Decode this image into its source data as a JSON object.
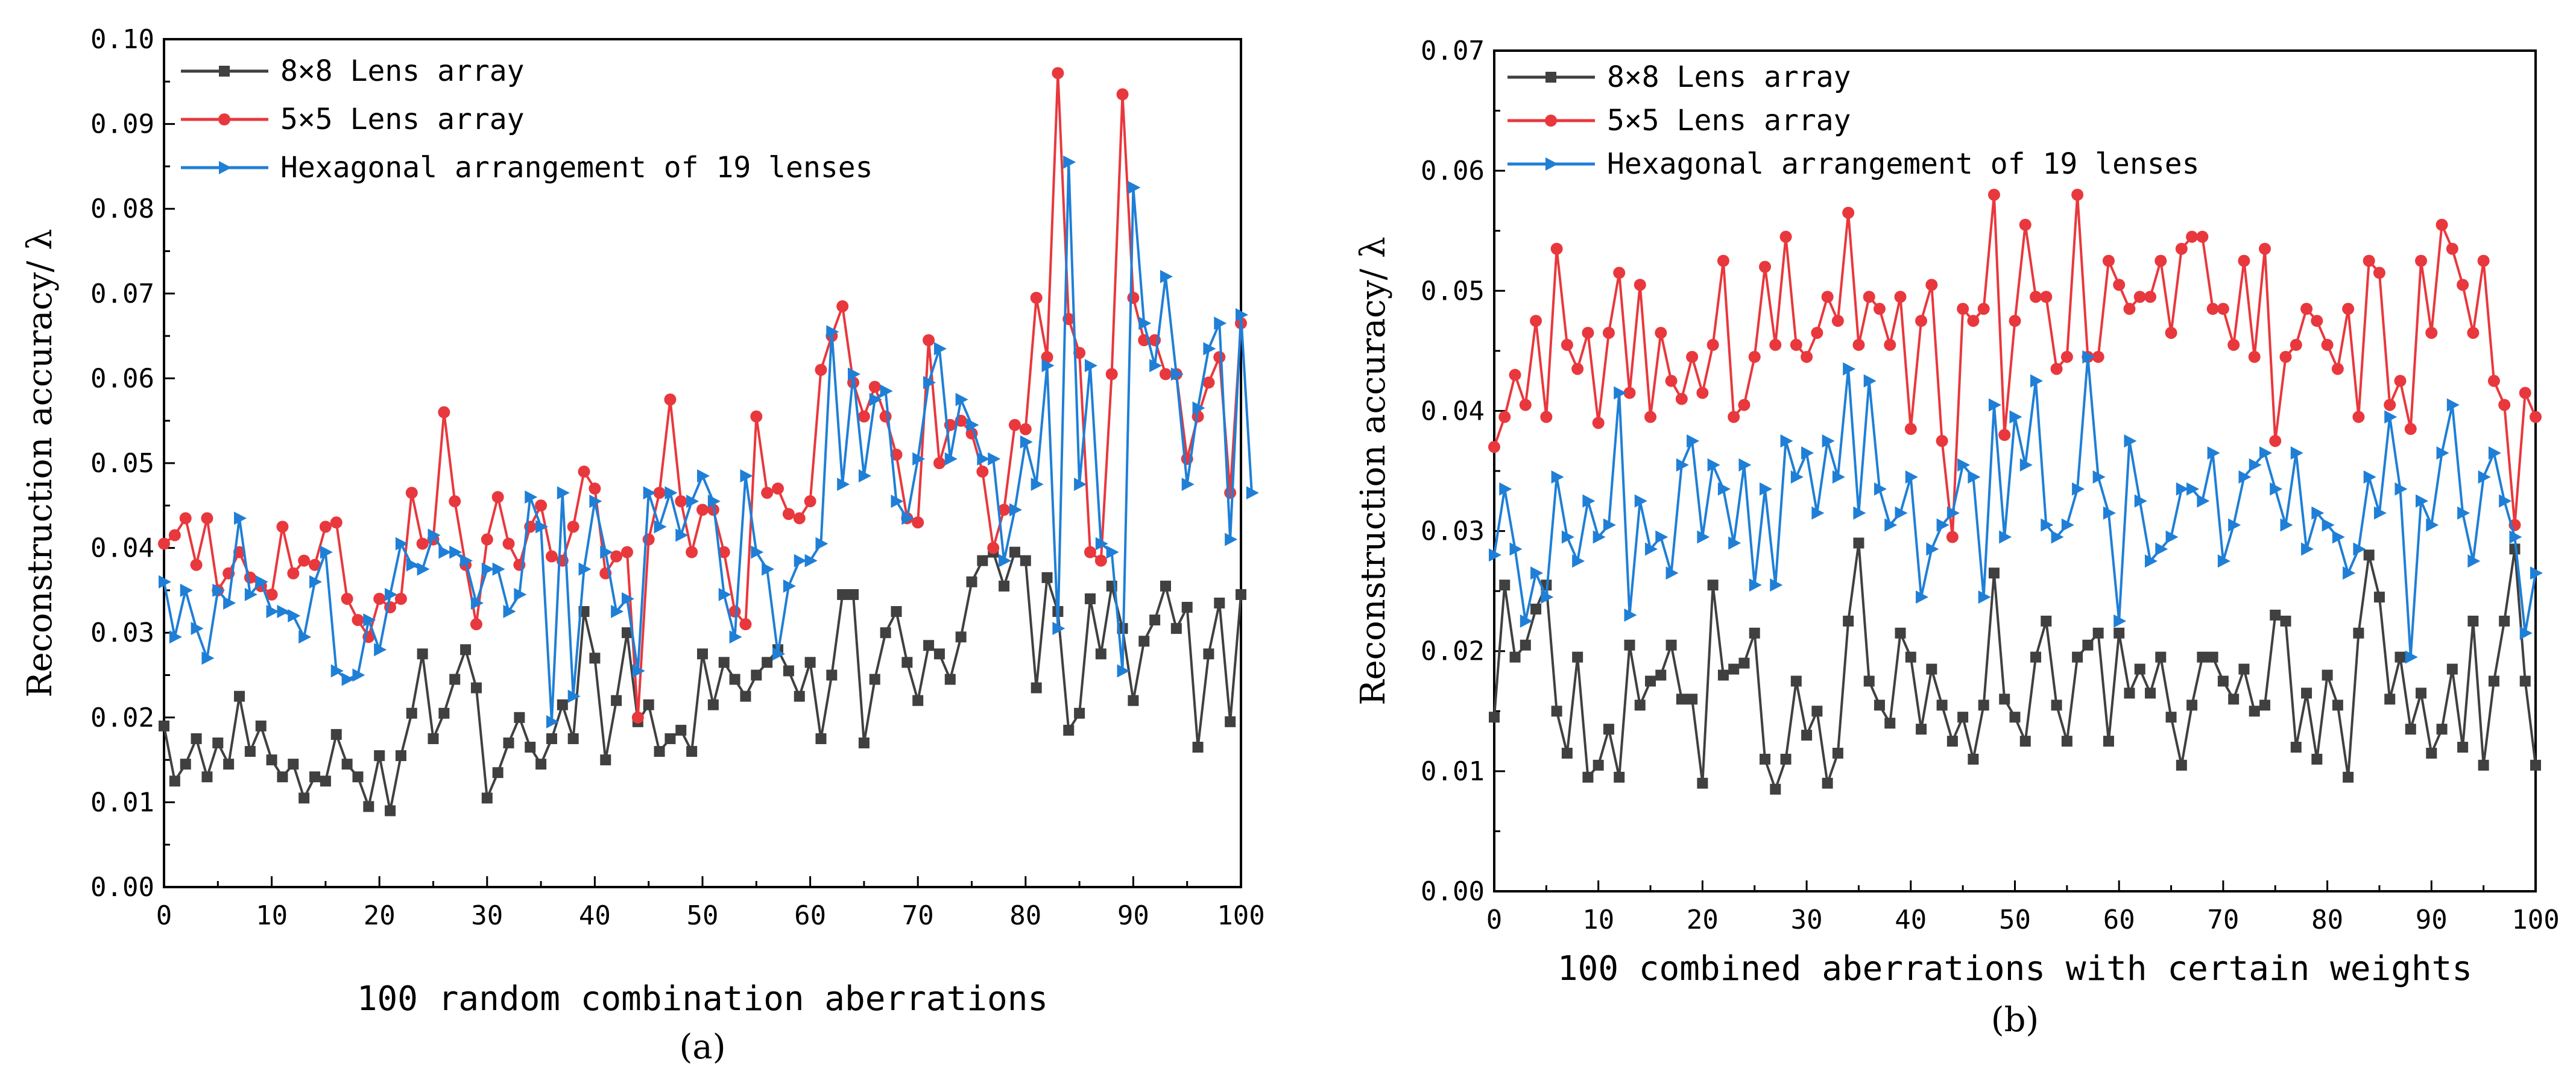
{
  "chart_data": [
    {
      "type": "line",
      "title": "",
      "caption": "(a)",
      "xlabel": "100 random combination aberrations",
      "ylabel": "Reconstruction accuracy/ λ",
      "xlim": [
        0,
        100
      ],
      "ylim": [
        0,
        0.1
      ],
      "xticks": [
        "0",
        "10",
        "20",
        "30",
        "40",
        "50",
        "60",
        "70",
        "80",
        "90",
        "100"
      ],
      "yticks": [
        "0.00",
        "0.01",
        "0.02",
        "0.03",
        "0.04",
        "0.05",
        "0.06",
        "0.07",
        "0.08",
        "0.09",
        "0.10"
      ],
      "grid": false,
      "legend_position": "top-left",
      "series": [
        {
          "name": "8×8 Lens array",
          "color": "#404040",
          "marker": "square",
          "values": [
            0.019,
            0.0125,
            0.0145,
            0.0175,
            0.013,
            0.017,
            0.0145,
            0.0225,
            0.016,
            0.019,
            0.015,
            0.013,
            0.0145,
            0.0105,
            0.013,
            0.0125,
            0.018,
            0.0145,
            0.013,
            0.0095,
            0.0155,
            0.009,
            0.0155,
            0.0205,
            0.0275,
            0.0175,
            0.0205,
            0.0245,
            0.028,
            0.0235,
            0.0105,
            0.0135,
            0.017,
            0.02,
            0.0165,
            0.0145,
            0.0175,
            0.0215,
            0.0175,
            0.0325,
            0.027,
            0.015,
            0.022,
            0.03,
            0.0195,
            0.0215,
            0.016,
            0.0175,
            0.0185,
            0.016,
            0.0275,
            0.0215,
            0.0265,
            0.0245,
            0.0225,
            0.025,
            0.0265,
            0.028,
            0.0255,
            0.0225,
            0.0265,
            0.0175,
            0.025,
            0.0345,
            0.0345,
            0.017,
            0.0245,
            0.03,
            0.0325,
            0.0265,
            0.022,
            0.0285,
            0.0275,
            0.0245,
            0.0295,
            0.036,
            0.0385,
            0.0395,
            0.0355,
            0.0395,
            0.0385,
            0.0235,
            0.0365,
            0.0325,
            0.0185,
            0.0205,
            0.034,
            0.0275,
            0.0355,
            0.0305,
            0.022,
            0.029,
            0.0315,
            0.0355,
            0.0305,
            0.033,
            0.0165,
            0.0275,
            0.0335,
            0.0195,
            0.0345
          ]
        },
        {
          "name": "5×5 Lens array",
          "color": "#e8383d",
          "marker": "circle",
          "values": [
            0.0405,
            0.0415,
            0.0435,
            0.038,
            0.0435,
            0.035,
            0.037,
            0.0395,
            0.0365,
            0.0355,
            0.0345,
            0.0425,
            0.037,
            0.0385,
            0.038,
            0.0425,
            0.043,
            0.034,
            0.0315,
            0.0295,
            0.034,
            0.033,
            0.034,
            0.0465,
            0.0405,
            0.041,
            0.056,
            0.0455,
            0.038,
            0.031,
            0.041,
            0.046,
            0.0405,
            0.038,
            0.0425,
            0.045,
            0.039,
            0.0385,
            0.0425,
            0.049,
            0.047,
            0.037,
            0.039,
            0.0395,
            0.02,
            0.041,
            0.0465,
            0.0575,
            0.0455,
            0.0395,
            0.0445,
            0.0445,
            0.0395,
            0.0325,
            0.031,
            0.0555,
            0.0465,
            0.047,
            0.044,
            0.0435,
            0.0455,
            0.061,
            0.065,
            0.0685,
            0.0595,
            0.0555,
            0.059,
            0.0555,
            0.051,
            0.0435,
            0.043,
            0.0645,
            0.05,
            0.0545,
            0.055,
            0.0535,
            0.049,
            0.04,
            0.0445,
            0.0545,
            0.054,
            0.0695,
            0.0625,
            0.096,
            0.067,
            0.063,
            0.0395,
            0.0385,
            0.0605,
            0.0935,
            0.0695,
            0.0645,
            0.0645,
            0.0605,
            0.0605,
            0.0505,
            0.0555,
            0.0595,
            0.0625,
            0.0465,
            0.0665
          ]
        },
        {
          "name": "Hexagonal arrangement of 19 lenses",
          "color": "#1f7fd6",
          "marker": "triangle-right",
          "values": [
            0.036,
            0.0295,
            0.035,
            0.0305,
            0.027,
            0.035,
            0.0335,
            0.0435,
            0.0345,
            0.036,
            0.0325,
            0.0325,
            0.032,
            0.0295,
            0.036,
            0.0395,
            0.0255,
            0.0245,
            0.025,
            0.0315,
            0.028,
            0.0345,
            0.0405,
            0.038,
            0.0375,
            0.0415,
            0.0395,
            0.0395,
            0.0385,
            0.0335,
            0.0375,
            0.0375,
            0.0325,
            0.0345,
            0.046,
            0.0425,
            0.0195,
            0.0465,
            0.0225,
            0.0375,
            0.0455,
            0.0395,
            0.0325,
            0.034,
            0.0255,
            0.0465,
            0.0425,
            0.0465,
            0.0415,
            0.0455,
            0.0485,
            0.0455,
            0.0345,
            0.0295,
            0.0485,
            0.0395,
            0.0375,
            0.0275,
            0.0355,
            0.0385,
            0.0385,
            0.0405,
            0.0655,
            0.0475,
            0.0605,
            0.0485,
            0.0575,
            0.0585,
            0.0455,
            0.0435,
            0.0505,
            0.0595,
            0.0635,
            0.0505,
            0.0575,
            0.0545,
            0.0505,
            0.0505,
            0.0385,
            0.0445,
            0.0525,
            0.0475,
            0.0615,
            0.0305,
            0.0855,
            0.0475,
            0.0615,
            0.0405,
            0.0395,
            0.0255,
            0.0825,
            0.0665,
            0.0615,
            0.072,
            0.0605,
            0.0475,
            0.0565,
            0.0635,
            0.0665,
            0.041,
            0.0675,
            0.0465
          ]
        }
      ]
    },
    {
      "type": "line",
      "title": "",
      "caption": "(b)",
      "xlabel": "100 combined aberrations with certain weights",
      "ylabel": "Reconstruction accuracy/ λ",
      "xlim": [
        0,
        100
      ],
      "ylim": [
        0,
        0.07
      ],
      "xticks": [
        "0",
        "10",
        "20",
        "30",
        "40",
        "50",
        "60",
        "70",
        "80",
        "90",
        "100"
      ],
      "yticks": [
        "0.00",
        "0.01",
        "0.02",
        "0.03",
        "0.04",
        "0.05",
        "0.06",
        "0.07"
      ],
      "grid": false,
      "legend_position": "top-left",
      "series": [
        {
          "name": "8×8 Lens array",
          "color": "#404040",
          "marker": "square",
          "values": [
            0.0145,
            0.0255,
            0.0195,
            0.0205,
            0.0235,
            0.0255,
            0.015,
            0.0115,
            0.0195,
            0.0095,
            0.0105,
            0.0135,
            0.0095,
            0.0205,
            0.0155,
            0.0175,
            0.018,
            0.0205,
            0.016,
            0.016,
            0.009,
            0.0255,
            0.018,
            0.0185,
            0.019,
            0.0215,
            0.011,
            0.0085,
            0.011,
            0.0175,
            0.013,
            0.015,
            0.009,
            0.0115,
            0.0225,
            0.029,
            0.0175,
            0.0155,
            0.014,
            0.0215,
            0.0195,
            0.0135,
            0.0185,
            0.0155,
            0.0125,
            0.0145,
            0.011,
            0.0155,
            0.0265,
            0.016,
            0.0145,
            0.0125,
            0.0195,
            0.0225,
            0.0155,
            0.0125,
            0.0195,
            0.0205,
            0.0215,
            0.0125,
            0.0215,
            0.0165,
            0.0185,
            0.0165,
            0.0195,
            0.0145,
            0.0105,
            0.0155,
            0.0195,
            0.0195,
            0.0175,
            0.016,
            0.0185,
            0.015,
            0.0155,
            0.023,
            0.0225,
            0.012,
            0.0165,
            0.011,
            0.018,
            0.0155,
            0.0095,
            0.0215,
            0.028,
            0.0245,
            0.016,
            0.0195,
            0.0135,
            0.0165,
            0.0115,
            0.0135,
            0.0185,
            0.012,
            0.0225,
            0.0105,
            0.0175,
            0.0225,
            0.0285,
            0.0175,
            0.0105
          ]
        },
        {
          "name": "5×5 Lens array",
          "color": "#e8383d",
          "marker": "circle",
          "values": [
            0.037,
            0.0395,
            0.043,
            0.0405,
            0.0475,
            0.0395,
            0.0535,
            0.0455,
            0.0435,
            0.0465,
            0.039,
            0.0465,
            0.0515,
            0.0415,
            0.0505,
            0.0395,
            0.0465,
            0.0425,
            0.041,
            0.0445,
            0.0415,
            0.0455,
            0.0525,
            0.0395,
            0.0405,
            0.0445,
            0.052,
            0.0455,
            0.0545,
            0.0455,
            0.0445,
            0.0465,
            0.0495,
            0.0475,
            0.0565,
            0.0455,
            0.0495,
            0.0485,
            0.0455,
            0.0495,
            0.0385,
            0.0475,
            0.0505,
            0.0375,
            0.0295,
            0.0485,
            0.0475,
            0.0485,
            0.058,
            0.038,
            0.0475,
            0.0555,
            0.0495,
            0.0495,
            0.0435,
            0.0445,
            0.058,
            0.0445,
            0.0445,
            0.0525,
            0.0505,
            0.0485,
            0.0495,
            0.0495,
            0.0525,
            0.0465,
            0.0535,
            0.0545,
            0.0545,
            0.0485,
            0.0485,
            0.0455,
            0.0525,
            0.0445,
            0.0535,
            0.0375,
            0.0445,
            0.0455,
            0.0485,
            0.0475,
            0.0455,
            0.0435,
            0.0485,
            0.0395,
            0.0525,
            0.0515,
            0.0405,
            0.0425,
            0.0385,
            0.0525,
            0.0465,
            0.0555,
            0.0535,
            0.0505,
            0.0465,
            0.0525,
            0.0425,
            0.0405,
            0.0305,
            0.0415,
            0.0395
          ]
        },
        {
          "name": "Hexagonal arrangement of 19 lenses",
          "color": "#1f7fd6",
          "marker": "triangle-right",
          "values": [
            0.028,
            0.0335,
            0.0285,
            0.0225,
            0.0265,
            0.0245,
            0.0345,
            0.0295,
            0.0275,
            0.0325,
            0.0295,
            0.0305,
            0.0415,
            0.023,
            0.0325,
            0.0285,
            0.0295,
            0.0265,
            0.0355,
            0.0375,
            0.0295,
            0.0355,
            0.0335,
            0.029,
            0.0355,
            0.0255,
            0.0335,
            0.0255,
            0.0375,
            0.0345,
            0.0365,
            0.0315,
            0.0375,
            0.0345,
            0.0435,
            0.0315,
            0.0425,
            0.0335,
            0.0305,
            0.0315,
            0.0345,
            0.0245,
            0.0285,
            0.0305,
            0.0315,
            0.0355,
            0.0345,
            0.0245,
            0.0405,
            0.0295,
            0.0395,
            0.0355,
            0.0425,
            0.0305,
            0.0295,
            0.0305,
            0.0335,
            0.0445,
            0.0345,
            0.0315,
            0.0225,
            0.0375,
            0.0325,
            0.0275,
            0.0285,
            0.0295,
            0.0335,
            0.0335,
            0.0325,
            0.0365,
            0.0275,
            0.0305,
            0.0345,
            0.0355,
            0.0365,
            0.0335,
            0.0305,
            0.0365,
            0.0285,
            0.0315,
            0.0305,
            0.0295,
            0.0265,
            0.0285,
            0.0345,
            0.0315,
            0.0395,
            0.0335,
            0.0195,
            0.0325,
            0.0305,
            0.0365,
            0.0405,
            0.0315,
            0.0275,
            0.0345,
            0.0365,
            0.0325,
            0.0295,
            0.0215,
            0.0265
          ]
        }
      ]
    }
  ]
}
